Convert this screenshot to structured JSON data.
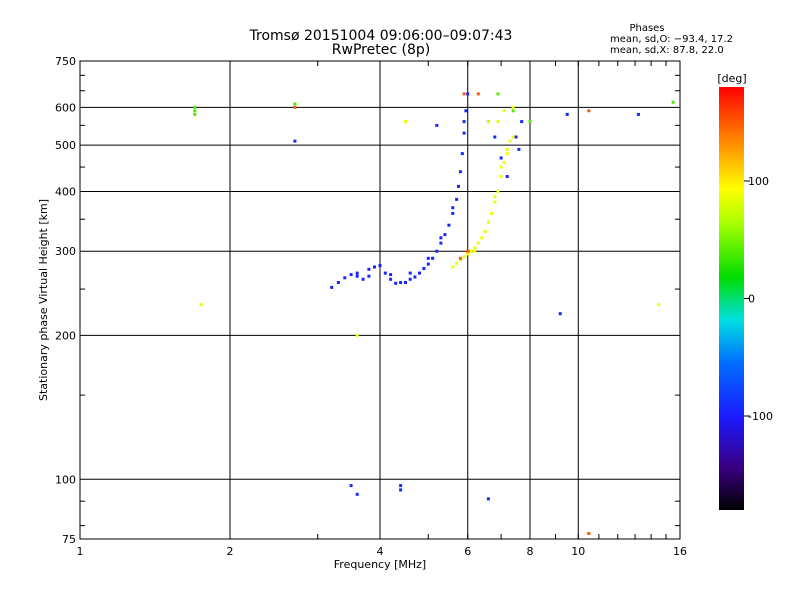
{
  "chart_data": {
    "type": "scatter",
    "title": "Tromsø 20151004 09:06:00–09:07:43",
    "subtitle": "RwPretec (8p)",
    "xlabel": "Frequency [MHz]",
    "ylabel": "Stationary phase Virtual Height [km]",
    "x_scale": "log",
    "y_scale": "log",
    "xlim": [
      1,
      16
    ],
    "ylim": [
      75,
      750
    ],
    "x_ticks": [
      1,
      2,
      4,
      6,
      8,
      10,
      16
    ],
    "x_tick_labels": [
      "1",
      "2",
      "4",
      "6",
      "8",
      "10",
      "16"
    ],
    "y_ticks": [
      75,
      100,
      200,
      300,
      400,
      500,
      600,
      750
    ],
    "y_tick_labels": [
      "75",
      "100",
      "200",
      "300",
      "400",
      "500",
      "600",
      "750"
    ],
    "grid": true,
    "stats": {
      "heading": "Phases",
      "line_o": "mean, sd,O: −93.4, 17.2",
      "line_x": "mean, sd,X:  87.8, 22.0"
    },
    "colorbar": {
      "label": "[deg]",
      "range": [
        -180,
        180
      ],
      "tick_values": [
        100,
        0,
        -100
      ],
      "tick_labels": [
        "100",
        "0",
        "-100"
      ]
    },
    "series": [
      {
        "mode": "O",
        "phase_deg": -93.4,
        "points": [
          [
            3.2,
            252
          ],
          [
            3.3,
            258
          ],
          [
            3.4,
            264
          ],
          [
            3.5,
            268
          ],
          [
            3.6,
            266
          ],
          [
            3.7,
            262
          ],
          [
            3.8,
            266
          ],
          [
            3.9,
            278
          ],
          [
            4.0,
            280
          ],
          [
            4.1,
            270
          ],
          [
            4.2,
            262
          ],
          [
            4.3,
            257
          ],
          [
            4.4,
            258
          ],
          [
            4.5,
            258
          ],
          [
            4.6,
            262
          ],
          [
            4.7,
            265
          ],
          [
            4.8,
            270
          ],
          [
            4.9,
            276
          ],
          [
            5.0,
            282
          ],
          [
            5.1,
            290
          ],
          [
            5.2,
            300
          ],
          [
            5.3,
            312
          ],
          [
            5.4,
            325
          ],
          [
            5.5,
            340
          ],
          [
            5.6,
            360
          ],
          [
            5.7,
            385
          ],
          [
            5.75,
            410
          ],
          [
            5.8,
            440
          ],
          [
            5.85,
            480
          ],
          [
            5.9,
            530
          ],
          [
            5.95,
            590
          ],
          [
            6.0,
            640
          ],
          [
            3.6,
            270
          ],
          [
            3.8,
            275
          ],
          [
            4.2,
            268
          ],
          [
            4.6,
            270
          ],
          [
            5.0,
            290
          ],
          [
            5.3,
            320
          ],
          [
            5.6,
            370
          ],
          [
            5.9,
            560
          ],
          [
            6.6,
            560
          ],
          [
            6.8,
            520
          ],
          [
            7.0,
            470
          ],
          [
            7.2,
            430
          ],
          [
            7.5,
            520
          ],
          [
            7.6,
            490
          ],
          [
            7.7,
            560
          ],
          [
            2.7,
            510
          ],
          [
            3.5,
            97
          ],
          [
            3.6,
            93
          ],
          [
            4.4,
            97
          ],
          [
            4.4,
            95
          ],
          [
            6.6,
            91
          ],
          [
            9.2,
            222
          ],
          [
            9.5,
            580
          ],
          [
            13.2,
            580
          ],
          [
            5.2,
            550
          ]
        ]
      },
      {
        "mode": "X",
        "phase_deg": 87.8,
        "points": [
          [
            5.6,
            278
          ],
          [
            5.7,
            283
          ],
          [
            5.8,
            288
          ],
          [
            5.9,
            292
          ],
          [
            6.0,
            296
          ],
          [
            6.1,
            300
          ],
          [
            6.2,
            305
          ],
          [
            6.3,
            312
          ],
          [
            6.4,
            320
          ],
          [
            6.5,
            330
          ],
          [
            6.6,
            345
          ],
          [
            6.7,
            360
          ],
          [
            6.8,
            380
          ],
          [
            6.9,
            400
          ],
          [
            7.0,
            430
          ],
          [
            7.1,
            460
          ],
          [
            7.2,
            490
          ],
          [
            7.3,
            510
          ],
          [
            7.4,
            520
          ],
          [
            6.2,
            300
          ],
          [
            6.5,
            330
          ],
          [
            6.8,
            390
          ],
          [
            7.0,
            450
          ],
          [
            7.2,
            480
          ],
          [
            6.6,
            560
          ],
          [
            6.9,
            560
          ],
          [
            7.1,
            590
          ],
          [
            4.5,
            560
          ],
          [
            3.6,
            200
          ],
          [
            1.75,
            232
          ],
          [
            14.5,
            232
          ],
          [
            7.4,
            600
          ]
        ]
      },
      {
        "mode": "other",
        "phase_deg": 40,
        "points": [
          [
            1.7,
            600
          ],
          [
            1.7,
            590
          ],
          [
            1.7,
            580
          ],
          [
            2.7,
            610
          ],
          [
            7.4,
            590
          ],
          [
            6.9,
            640
          ],
          [
            8.0,
            560
          ],
          [
            15.5,
            615
          ]
        ]
      },
      {
        "mode": "other",
        "phase_deg": 150,
        "points": [
          [
            5.8,
            290
          ],
          [
            6.0,
            300
          ],
          [
            5.9,
            640
          ],
          [
            6.3,
            640
          ],
          [
            10.5,
            590
          ],
          [
            10.5,
            77
          ],
          [
            2.7,
            600
          ]
        ]
      }
    ]
  }
}
